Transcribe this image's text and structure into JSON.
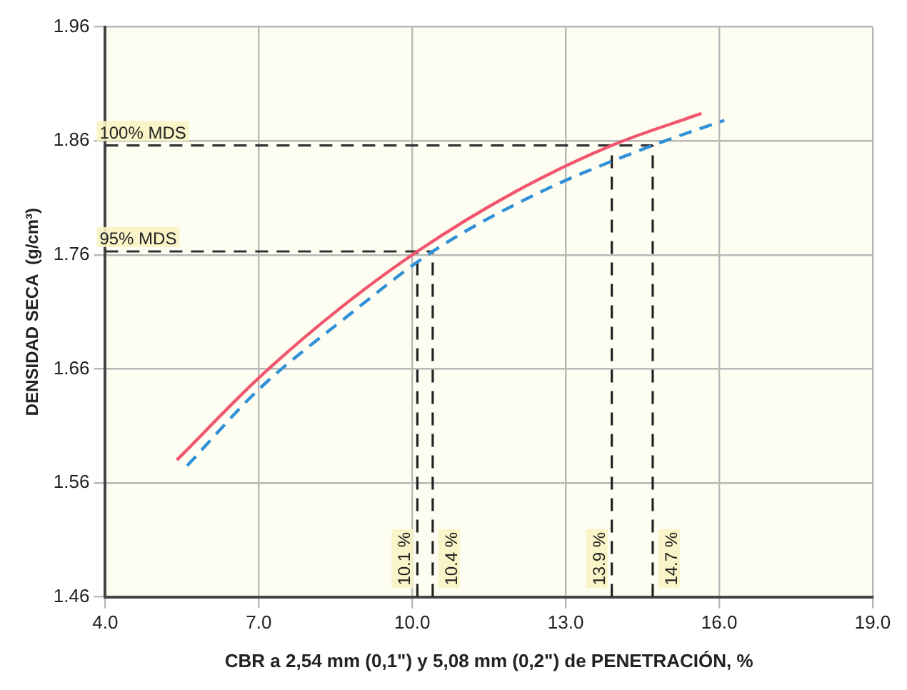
{
  "chart_data": {
    "type": "line",
    "xlabel": "CBR a 2,54 mm (0,1\") y 5,08 mm (0,2\") de PENETRACIÓN, %",
    "ylabel": "DENSIDAD SECA  (g/cm³)",
    "series": [
      {
        "color": "#f0566e",
        "line_style": "solid",
        "x": [
          5.4,
          7.0,
          8.5,
          10.1,
          12.0,
          13.9,
          15.65
        ],
        "values": [
          1.58,
          1.652,
          1.71,
          1.763,
          1.815,
          1.856,
          1.884
        ]
      },
      {
        "color": "#3090d8",
        "line_style": "dashed",
        "x": [
          5.6,
          7.0,
          8.7,
          10.4,
          12.5,
          14.7,
          16.1
        ],
        "values": [
          1.575,
          1.642,
          1.705,
          1.763,
          1.815,
          1.856,
          1.878
        ]
      }
    ],
    "xlim": [
      4,
      19
    ],
    "xticks": [
      {
        "value": 4,
        "label": "4.0"
      },
      {
        "value": 7,
        "label": "7.0"
      },
      {
        "value": 10,
        "label": "10.0"
      },
      {
        "value": 13,
        "label": "13.0"
      },
      {
        "value": 16,
        "label": "16.0"
      },
      {
        "value": 19,
        "label": "19.0"
      }
    ],
    "ylim": [
      1.46,
      1.96
    ],
    "yticks": [
      1.46,
      1.56,
      1.66,
      1.76,
      1.86,
      1.96
    ],
    "ref_lines": [
      {
        "axis": "y",
        "value": 1.856,
        "label": "100% MDS",
        "line_style": "dashed",
        "color": "#333333"
      },
      {
        "axis": "y",
        "value": 1.763,
        "label": "95% MDS",
        "line_style": "dashed",
        "color": "#333333"
      },
      {
        "axis": "x",
        "value": 10.1,
        "label": "10.1 %",
        "line_style": "dashed",
        "color": "#222222"
      },
      {
        "axis": "x",
        "value": 10.4,
        "label": "10.4 %",
        "line_style": "dashed",
        "color": "#222222"
      },
      {
        "axis": "x",
        "value": 13.9,
        "label": "13.9 %",
        "line_style": "dashed",
        "color": "#222222"
      },
      {
        "axis": "x",
        "value": 14.7,
        "label": "14.7 %",
        "line_style": "dashed",
        "color": "#222222"
      }
    ],
    "grid": true,
    "legend": false,
    "marker": "none"
  }
}
